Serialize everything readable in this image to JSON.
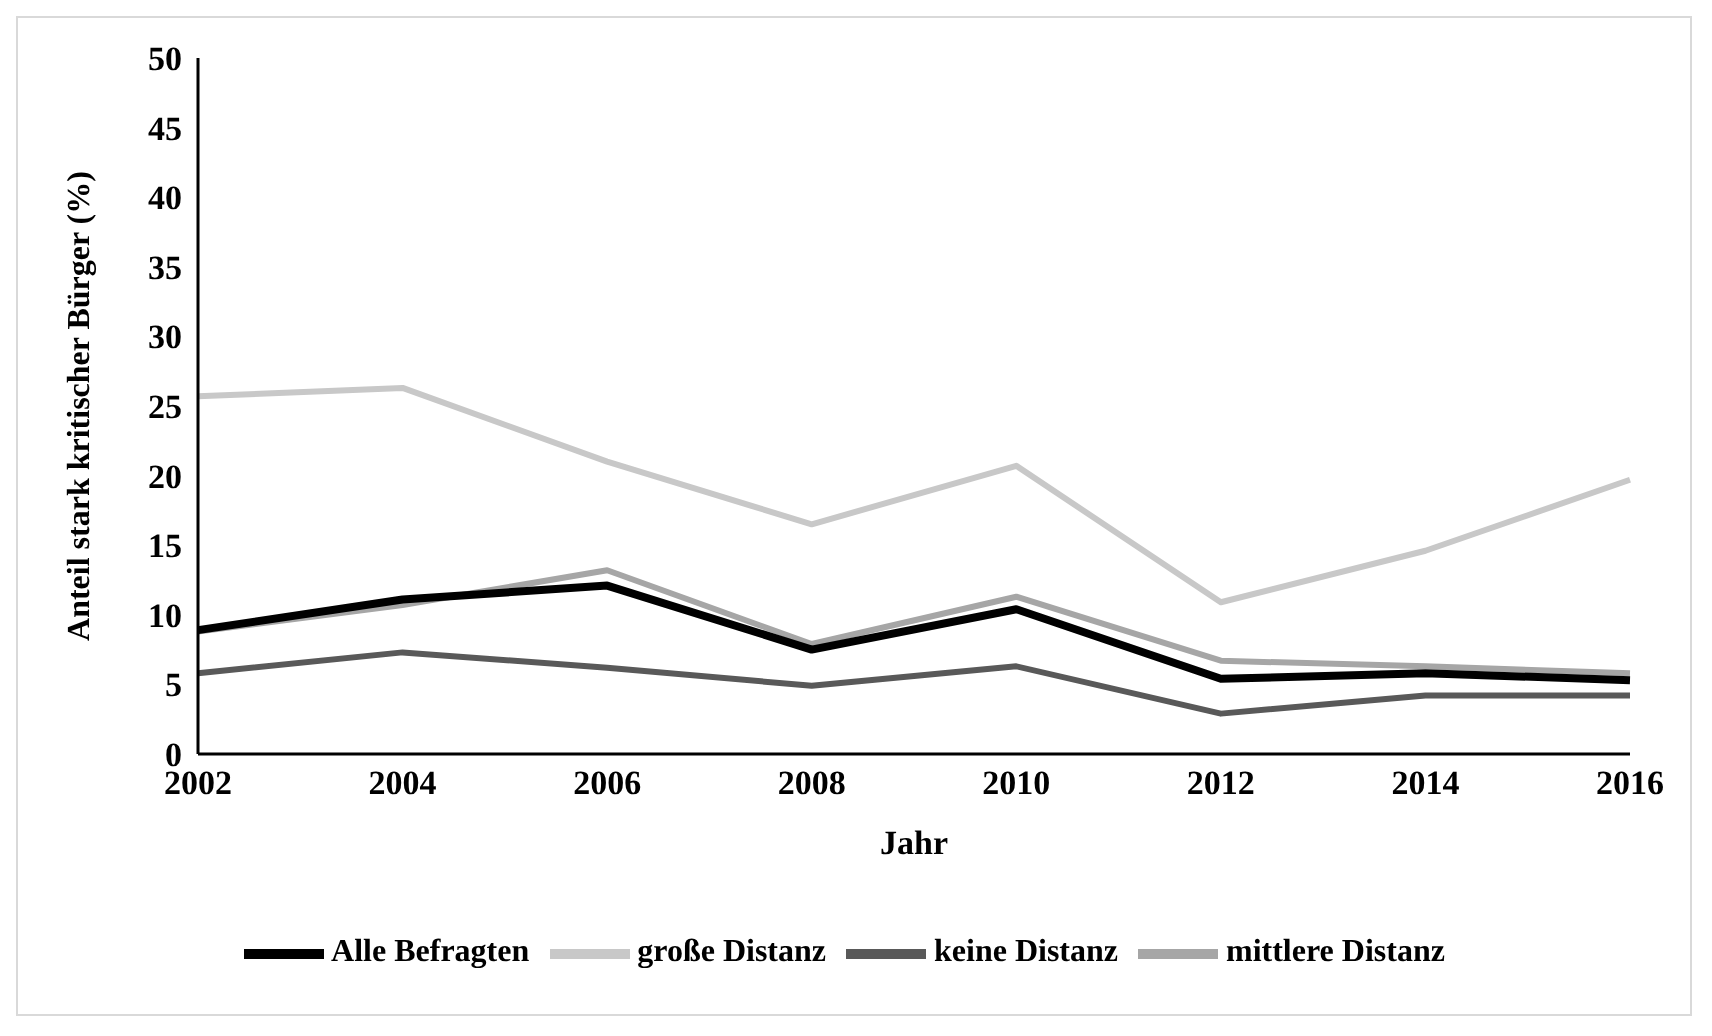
{
  "chart_data": {
    "type": "line",
    "xlabel": "Jahr",
    "ylabel": "Anteil stark kritischer Bürger (%)",
    "categories": [
      "2002",
      "2004",
      "2006",
      "2008",
      "2010",
      "2012",
      "2014",
      "2016"
    ],
    "series": [
      {
        "name": "keine Distanz",
        "color": "#595959",
        "values": [
          5.8,
          7.3,
          6.2,
          4.9,
          6.3,
          2.9,
          4.2,
          4.2
        ]
      },
      {
        "name": "mittlere Distanz",
        "color": "#a6a6a6",
        "values": [
          8.8,
          10.7,
          13.2,
          7.9,
          11.3,
          6.7,
          6.3,
          5.8
        ]
      },
      {
        "name": "große Distanz",
        "color": "#c8c8c8",
        "values": [
          25.7,
          26.3,
          21,
          16.5,
          20.7,
          10.9,
          14.6,
          19.7
        ]
      },
      {
        "name": "Alle Befragten",
        "color": "#000000",
        "values": [
          8.9,
          11.1,
          12.1,
          7.5,
          10.4,
          5.4,
          5.8,
          5.3
        ]
      }
    ],
    "ylim": [
      0,
      50
    ],
    "yticks": [
      0,
      5,
      10,
      15,
      20,
      25,
      30,
      35,
      40,
      45,
      50
    ],
    "grid": false,
    "legend": "bottom",
    "marker": "none",
    "line_style": "solid"
  }
}
